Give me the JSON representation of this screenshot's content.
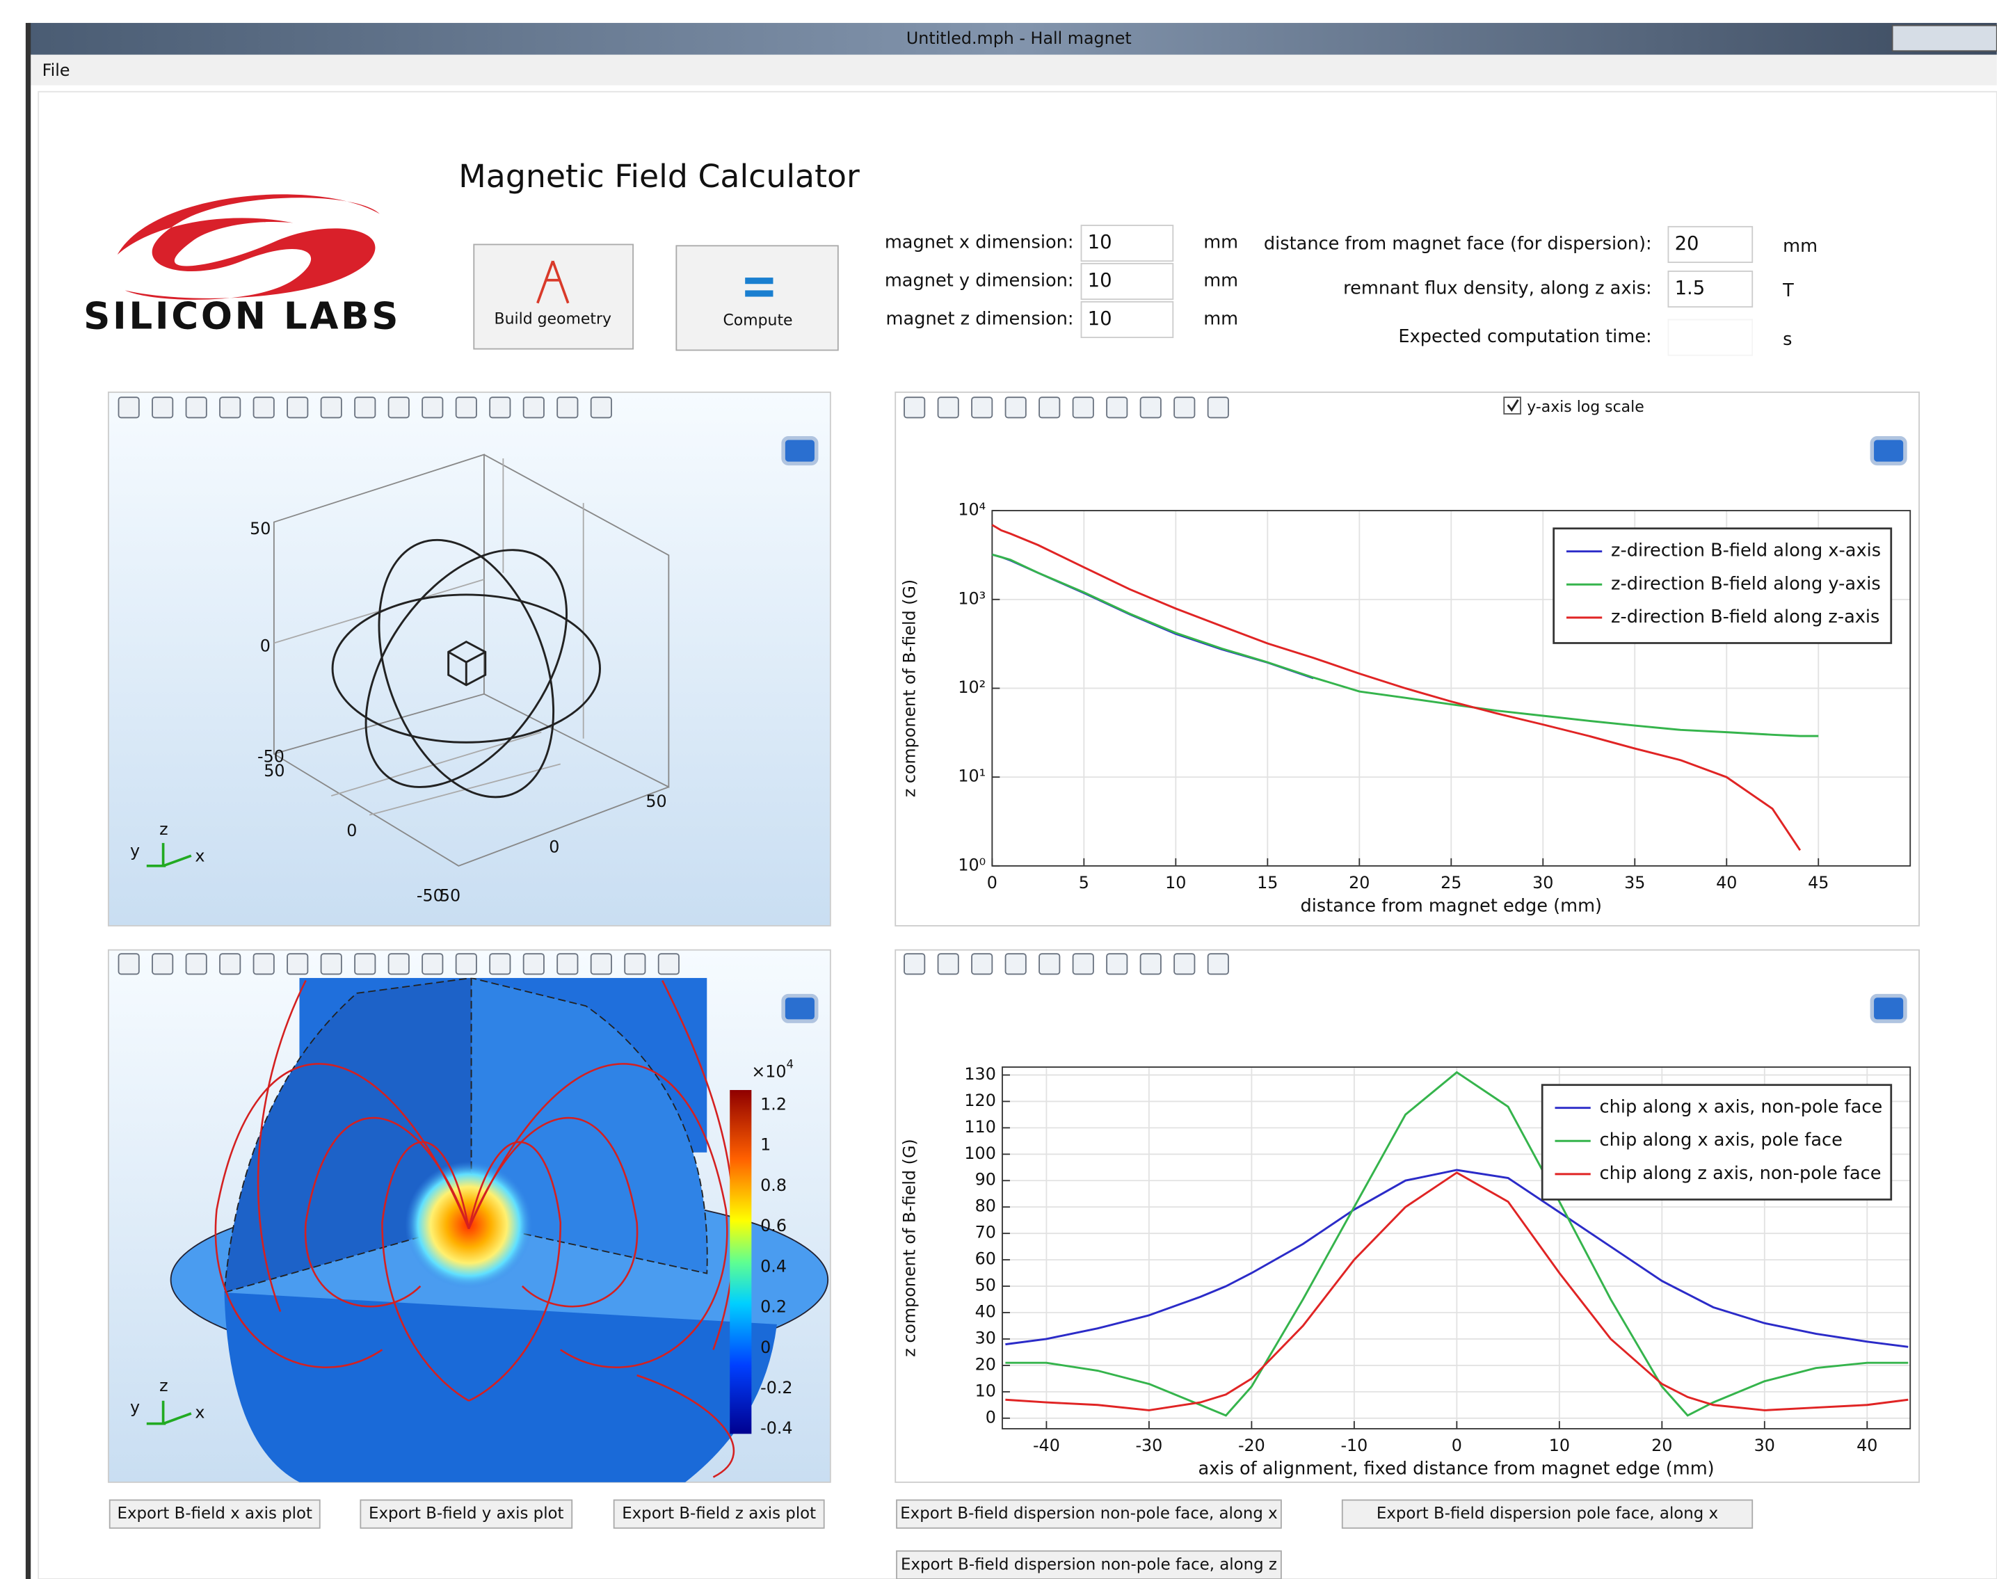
{
  "window": {
    "title": "Untitled.mph - Hall magnet",
    "menu": [
      "File"
    ]
  },
  "app": {
    "title": "Magnetic Field Calculator",
    "logo": "SILICON LABS",
    "buttons": [
      "Build geometry",
      "Compute"
    ]
  },
  "inputs": [
    {
      "label": "magnet x dimension:",
      "value": "10",
      "unit": "mm"
    },
    {
      "label": "magnet y dimension:",
      "value": "10",
      "unit": "mm"
    },
    {
      "label": "magnet z dimension:",
      "value": "10",
      "unit": "mm"
    }
  ],
  "settings": [
    {
      "label": "distance from magnet face (for dispersion):",
      "value": "20",
      "unit": "mm"
    },
    {
      "label": "remnant flux density, along z axis:",
      "value": "1.5",
      "unit": "T"
    },
    {
      "label": "Expected computation time:",
      "unit": "s"
    }
  ],
  "geometry_view": {
    "tick_labels": [
      "50",
      "0",
      "-50",
      "50",
      "50",
      "0",
      "0",
      "-50",
      "50"
    ],
    "triad": [
      "y",
      "z",
      "x"
    ]
  },
  "field_view": {
    "triad": [
      "y",
      "z",
      "x"
    ],
    "colorbar": {
      "multiplier": "×10",
      "exponent": "4",
      "ticks": [
        "1.2",
        "1",
        "0.8",
        "0.6",
        "0.4",
        "0.2",
        "0",
        "-0.2",
        "-0.4"
      ]
    }
  },
  "log_checkbox": "y-axis log scale",
  "chart_data": [
    {
      "type": "line",
      "log_y": true,
      "grid": true,
      "legend": "upper right",
      "x_label": "distance from magnet edge (mm)",
      "y_label": "z component of B-field (G)",
      "x": [
        0,
        0.5,
        1,
        2.5,
        5,
        7.5,
        10,
        12.5,
        15,
        17.5,
        20,
        22.5,
        25,
        27.5,
        30,
        32.5,
        35,
        37.5,
        40,
        42.5,
        44,
        45
      ],
      "series": [
        {
          "name": "z-direction B-field along x-axis",
          "color": "#2b2bc8",
          "values": [
            3200,
            3000,
            2750,
            2000,
            1180,
            680,
            410,
            275,
            195,
            130,
            null,
            null,
            null,
            null,
            null,
            null,
            null,
            null,
            null,
            null,
            null,
            null
          ]
        },
        {
          "name": "z-direction B-field along y-axis",
          "color": "#35b44c",
          "values": [
            3200,
            3000,
            2800,
            2000,
            1200,
            690,
            420,
            280,
            196,
            132,
            92,
            78,
            66,
            56,
            49,
            43,
            38,
            34,
            32,
            30,
            29,
            29
          ]
        },
        {
          "name": "z-direction B-field along z-axis",
          "color": "#e02424",
          "values": [
            6900,
            6000,
            5500,
            4100,
            2300,
            1300,
            790,
            500,
            320,
            220,
            146,
            100,
            71,
            52,
            39,
            29,
            21,
            15.5,
            10,
            4.4,
            1.5,
            null
          ]
        }
      ],
      "xlim": [
        0,
        50
      ],
      "xticks": [
        0,
        5,
        10,
        15,
        20,
        25,
        30,
        35,
        40,
        45
      ],
      "ylim": [
        1,
        10000
      ],
      "yticks": [
        {
          "value": 1,
          "label": "10⁰"
        },
        {
          "value": 10,
          "label": "10¹"
        },
        {
          "value": 100,
          "label": "10²"
        },
        {
          "value": 1000,
          "label": "10³"
        },
        {
          "value": 10000,
          "label": "10⁴"
        }
      ]
    },
    {
      "type": "line",
      "log_y": false,
      "grid": true,
      "legend": "upper right",
      "x_label": "axis of alignment, fixed distance from magnet edge (mm)",
      "y_label": "z component of B-field (G)",
      "x": [
        -44,
        -40,
        -35,
        -30,
        -25,
        -22.5,
        -20,
        -15,
        -10,
        -5,
        0,
        5,
        10,
        15,
        20,
        22.5,
        25,
        30,
        35,
        40,
        44
      ],
      "series": [
        {
          "name": "chip along x axis, non-pole face",
          "color": "#2b2bc8",
          "values": [
            28,
            30,
            34,
            39,
            46,
            50,
            55,
            66,
            79,
            90,
            94,
            91,
            78,
            65,
            52,
            47,
            42,
            36,
            32,
            29,
            27
          ]
        },
        {
          "name": "chip along x axis, pole face",
          "color": "#35b44c",
          "values": [
            21,
            21,
            18,
            13,
            5,
            1,
            12,
            45,
            80,
            115,
            131,
            118,
            82,
            45,
            12,
            1,
            6,
            14,
            19,
            21,
            21
          ]
        },
        {
          "name": "chip along z axis, non-pole face",
          "color": "#e02424",
          "values": [
            7,
            6,
            5,
            3,
            6,
            9,
            15,
            35,
            60,
            80,
            93,
            82,
            55,
            30,
            13,
            8,
            5,
            3,
            4,
            5,
            7
          ]
        }
      ],
      "xlim": [
        -44.3,
        44.2
      ],
      "xticks": [
        -40,
        -30,
        -20,
        -10,
        0,
        10,
        20,
        30,
        40
      ],
      "ylim": [
        -4,
        133
      ],
      "yticks": [
        0,
        10,
        20,
        30,
        40,
        50,
        60,
        70,
        80,
        90,
        100,
        110,
        120,
        130
      ]
    }
  ],
  "export_buttons": [
    "Export B-field x axis plot",
    "Export B-field y axis plot",
    "Export B-field z axis plot",
    "Export B-field dispersion non-pole face, along x",
    "Export B-field dispersion pole face, along x",
    "Export B-field dispersion non-pole face, along z"
  ]
}
